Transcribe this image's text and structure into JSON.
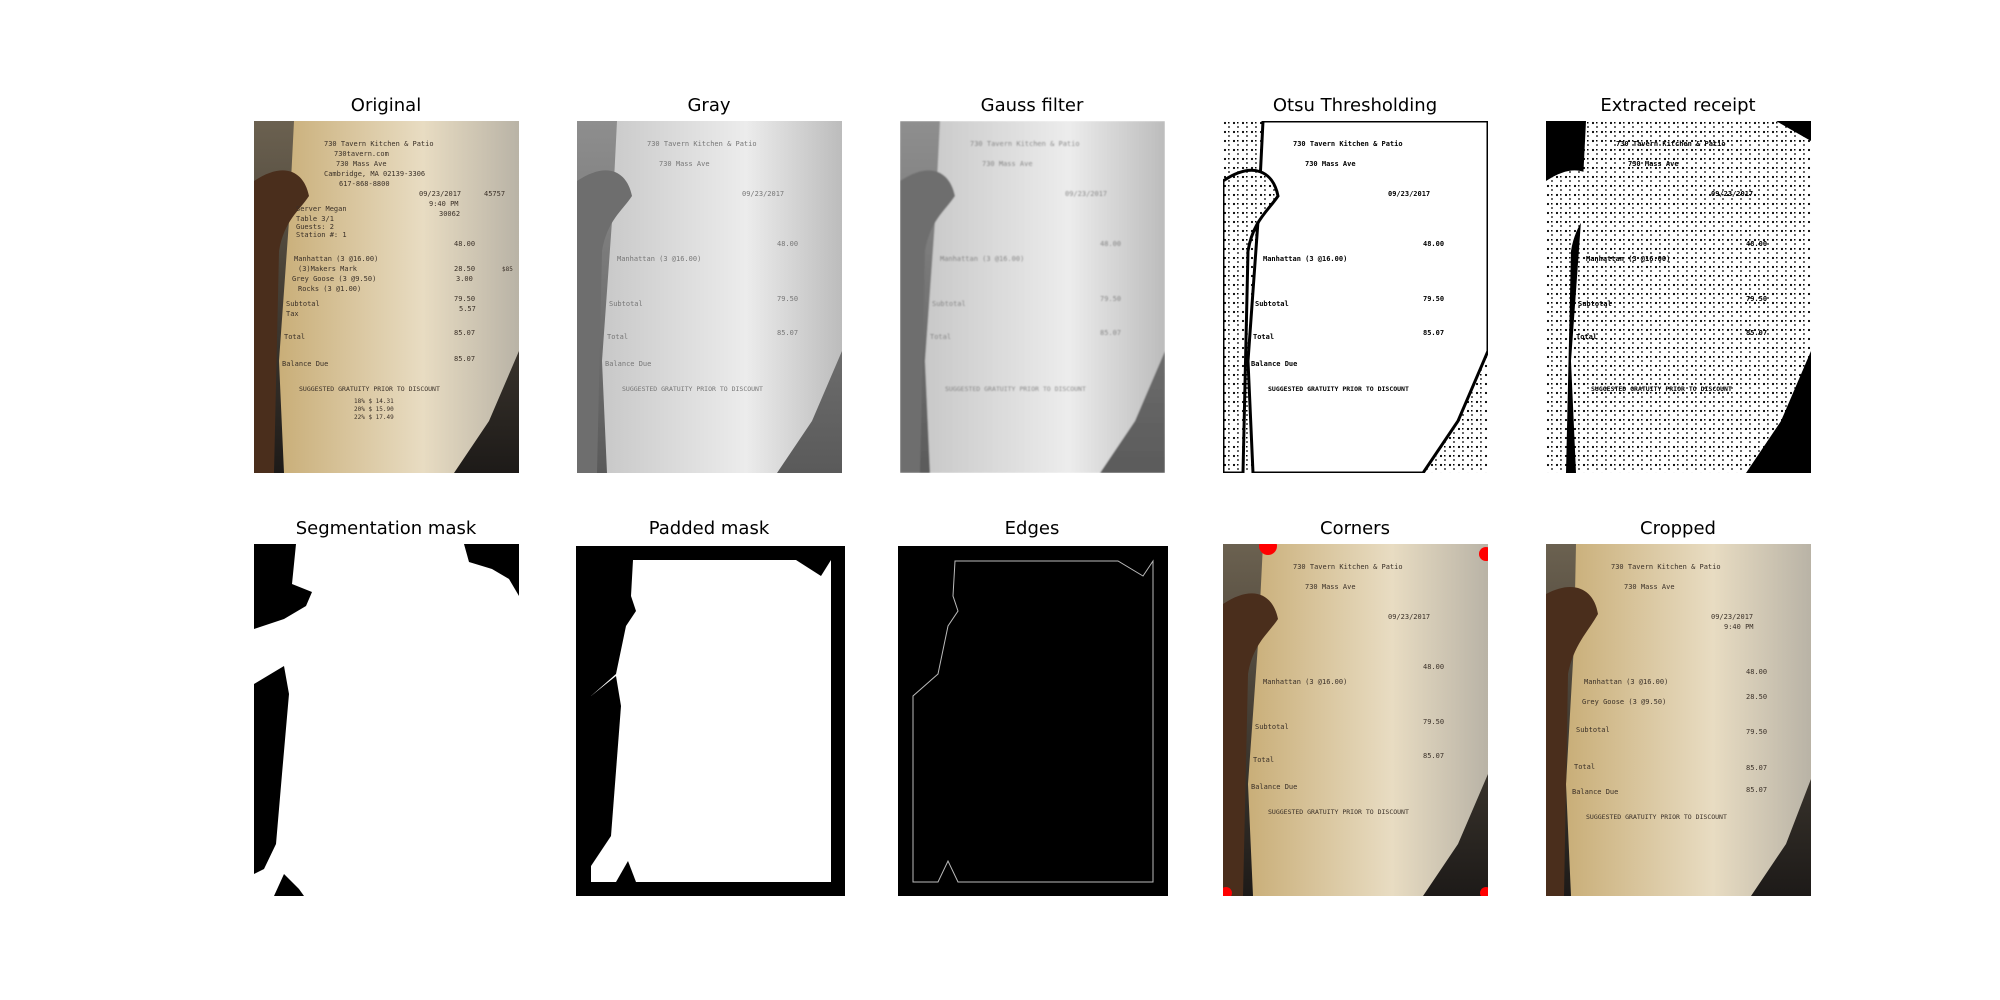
{
  "panels": [
    {
      "title": "Original"
    },
    {
      "title": "Gray"
    },
    {
      "title": "Gauss filter"
    },
    {
      "title": "Otsu Thresholding"
    },
    {
      "title": "Extracted receipt"
    },
    {
      "title": "Segmentation mask"
    },
    {
      "title": "Padded mask"
    },
    {
      "title": "Edges"
    },
    {
      "title": "Corners"
    },
    {
      "title": "Cropped"
    }
  ],
  "receipt": {
    "header": [
      "730 Tavern Kitchen & Patio",
      "730tavern.com",
      "730 Mass Ave",
      "Cambridge, MA 02139-3306",
      "617-868-8800"
    ],
    "date": "09/23/2017",
    "time": "9:40 PM",
    "check": "30062",
    "side": "45757",
    "server": "Server Megan",
    "table": "Table 3/1",
    "guests": "Guests: 2",
    "station": "Station #: 1",
    "items": [
      {
        "name": "Manhattan (3 @16.00)",
        "price": "48.00"
      },
      {
        "name": "(3)Makers Mark",
        "price": ""
      },
      {
        "name": "Grey Goose (3 @9.50)",
        "price": "28.50"
      },
      {
        "name": "Rocks (3 @1.00)",
        "price": "3.00"
      }
    ],
    "subtotal_label": "Subtotal",
    "subtotal": "79.50",
    "tax_label": "Tax",
    "tax": "5.57",
    "total_label": "Total",
    "total": "85.07",
    "balance_label": "Balance Due",
    "balance": "85.07",
    "gratuity": "SUGGESTED GRATUITY PRIOR TO DISCOUNT",
    "tips": [
      "18% $ 14.31",
      "20% $ 15.90",
      "22% $ 17.49"
    ],
    "edge_tag": "$85"
  },
  "colors": {
    "paper": "#e9dcc0",
    "hand": "#5a3a24",
    "background": "#2a2622",
    "corner_marker": "#ff0000"
  }
}
